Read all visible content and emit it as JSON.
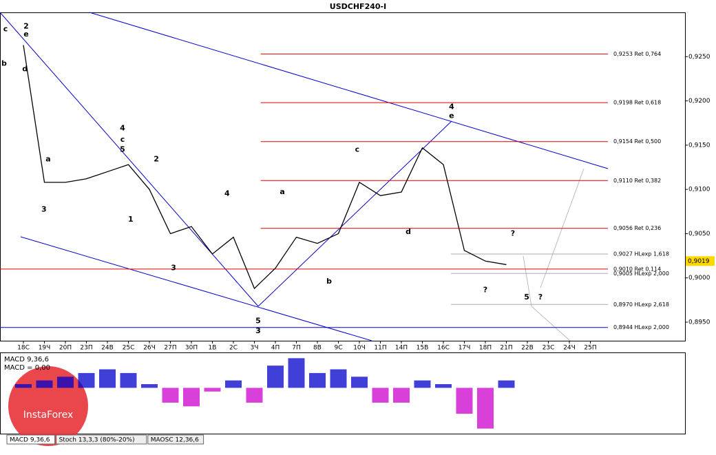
{
  "chart_data": {
    "type": "line",
    "title": "USDCHF240-I",
    "categories": [
      "18С",
      "19Ч",
      "20П",
      "23П",
      "24В",
      "25С",
      "26Ч",
      "27П",
      "30П",
      "1В",
      "2С",
      "3Ч",
      "4П",
      "7П",
      "8В",
      "9С",
      "10Ч",
      "11П",
      "14П",
      "15В",
      "16С",
      "17Ч",
      "18П",
      "21П",
      "22В",
      "23С",
      "24Ч",
      "25П"
    ],
    "series": [
      {
        "color": "#000000",
        "values": [
          0.9263,
          0.9108,
          0.9108,
          0.9112,
          0.912,
          0.9128,
          0.91,
          0.905,
          0.9058,
          0.9027,
          0.9046,
          0.8988,
          0.9011,
          0.9046,
          0.9039,
          0.905,
          0.9108,
          0.9093,
          0.9097,
          0.9147,
          0.9128,
          0.9031,
          0.9019,
          0.9015,
          null,
          null,
          null,
          null
        ]
      }
    ],
    "ylim": [
      0.8929,
      0.93
    ],
    "yticks": [
      {
        "value": 0.895,
        "label": "0,8950"
      },
      {
        "value": 0.9,
        "label": "0,9000"
      },
      {
        "value": 0.905,
        "label": "0,9050"
      },
      {
        "value": 0.91,
        "label": "0,9100"
      },
      {
        "value": 0.915,
        "label": "0,9150"
      },
      {
        "value": 0.92,
        "label": "0,9200"
      },
      {
        "value": 0.925,
        "label": "0,9250"
      }
    ],
    "current_price": {
      "value": 0.9019,
      "label": "0,9019"
    },
    "levels": [
      {
        "value": 0.9253,
        "label": "0,9253 Ret 0,764",
        "color": "#dd0000",
        "from": 11.3
      },
      {
        "value": 0.9198,
        "label": "0,9198 Ret 0,618",
        "color": "#dd0000",
        "from": 11.3
      },
      {
        "value": 0.9154,
        "label": "0,9154 Ret 0,500",
        "color": "#dd0000",
        "from": 11.3
      },
      {
        "value": 0.911,
        "label": "0,9110 Ret 0,382",
        "color": "#dd0000",
        "from": 11.3
      },
      {
        "value": 0.9056,
        "label": "0,9056 Ret 0,236",
        "color": "#dd0000",
        "from": 11.3
      },
      {
        "value": 0.9027,
        "label": "0,9027 HLexp 1,618",
        "color": "#aaaaaa",
        "from": 20.36
      },
      {
        "value": 0.901,
        "label": "0,9010 Ret 0,114",
        "color": "#dd0000",
        "from": -1.2
      },
      {
        "value": 0.9005,
        "label": "0,9005 HLexp 2,000",
        "color": "#aaaaaa",
        "from": 20.36
      },
      {
        "value": 0.897,
        "label": "0,8970 HLexp 2,618",
        "color": "#aaaaaa",
        "from": 20.36
      },
      {
        "value": 0.8944,
        "label": "0,8944 HLexp 2,000",
        "color": "#0000cc",
        "from": -1.2
      }
    ],
    "annotations": [
      {
        "text": "2",
        "x": 0.13,
        "y": 0.9284,
        "color": "#000000"
      },
      {
        "text": "e",
        "x": 0.13,
        "y": 0.9275,
        "color": "#000000"
      },
      {
        "text": "c",
        "x": -0.85,
        "y": 0.9281,
        "color": "#000000"
      },
      {
        "text": "b",
        "x": -0.92,
        "y": 0.9242,
        "color": "#000000"
      },
      {
        "text": "d",
        "x": 0.07,
        "y": 0.9236,
        "color": "#000000"
      },
      {
        "text": "a",
        "x": 1.18,
        "y": 0.9134,
        "color": "#000000"
      },
      {
        "text": "3",
        "x": 0.98,
        "y": 0.9077,
        "color": "#000000"
      },
      {
        "text": "4",
        "x": 4.72,
        "y": 0.9169,
        "color": "#000000"
      },
      {
        "text": "c",
        "x": 4.72,
        "y": 0.9156,
        "color": "#000000"
      },
      {
        "text": "5",
        "x": 4.72,
        "y": 0.9145,
        "color": "#000000"
      },
      {
        "text": "2",
        "x": 6.33,
        "y": 0.9134,
        "color": "#0000cc"
      },
      {
        "text": "1",
        "x": 5.11,
        "y": 0.9066,
        "color": "#0000cc"
      },
      {
        "text": "3",
        "x": 7.15,
        "y": 0.9011,
        "color": "#0000cc"
      },
      {
        "text": "4",
        "x": 9.7,
        "y": 0.9095,
        "color": "#0000cc"
      },
      {
        "text": "5",
        "x": 11.18,
        "y": 0.8951,
        "color": "#000000"
      },
      {
        "text": "3",
        "x": 11.18,
        "y": 0.894,
        "color": "#0000cc"
      },
      {
        "text": "a",
        "x": 12.33,
        "y": 0.9097,
        "color": "#0000cc"
      },
      {
        "text": "b",
        "x": 14.56,
        "y": 0.8996,
        "color": "#0000cc"
      },
      {
        "text": "c",
        "x": 15.9,
        "y": 0.9145,
        "color": "#0000cc"
      },
      {
        "text": "d",
        "x": 18.33,
        "y": 0.9052,
        "color": "#0000cc"
      },
      {
        "text": "4",
        "x": 20.39,
        "y": 0.9193,
        "color": "#0000cc"
      },
      {
        "text": "e",
        "x": 20.39,
        "y": 0.9183,
        "color": "#0000cc"
      },
      {
        "text": "?",
        "x": 23.31,
        "y": 0.905,
        "color": "#000000"
      },
      {
        "text": "?",
        "x": 22.0,
        "y": 0.8986,
        "color": "#000000"
      },
      {
        "text": "5",
        "x": 23.97,
        "y": 0.8978,
        "color": "#0000cc"
      },
      {
        "text": "?",
        "x": 24.62,
        "y": 0.8978,
        "color": "#000000"
      }
    ],
    "macd": {
      "title": "MACD 9,36,6",
      "reading": "MACD = 0,00",
      "ylim": [
        -60,
        45
      ],
      "values": [
        5,
        10,
        15,
        20,
        25,
        20,
        5,
        -20,
        -25,
        -5,
        10,
        -20,
        30,
        40,
        20,
        25,
        15,
        -20,
        -20,
        10,
        5,
        -35,
        -55,
        10
      ],
      "pos_color": "#0000cc",
      "neg_color": "#cc00cc"
    },
    "tabs": [
      "MACD 9,36,6",
      "Stoch 13,3,3 (80%-20%)",
      "MAOSC 12,36,6"
    ],
    "logo": "InstaForex"
  }
}
